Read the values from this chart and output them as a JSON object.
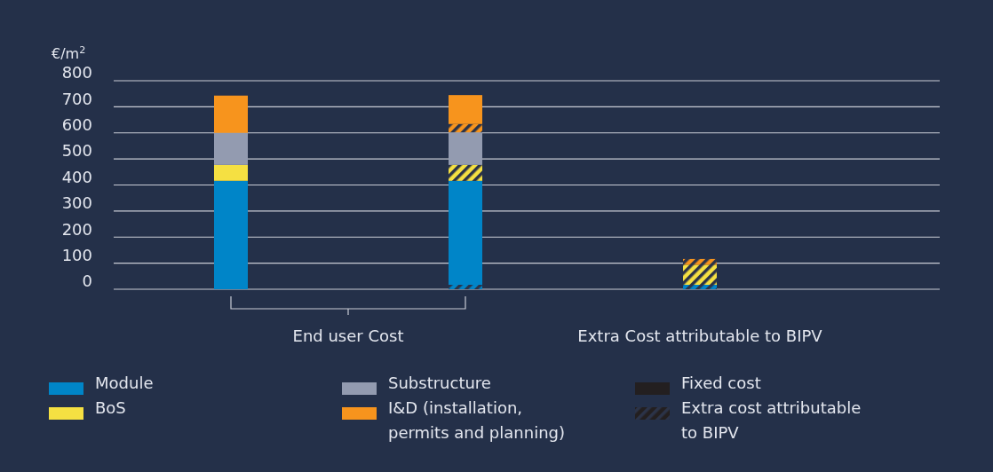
{
  "chart_data": {
    "type": "bar",
    "stacked": true,
    "ylabel": "€/m$^{2}$",
    "categories": [
      null,
      null,
      "Extra Cost attributable to BIPV"
    ],
    "annotations": [
      "End user Cost"
    ],
    "series": [
      {
        "color": "#0085c8",
        "line_style": "dashed",
        "values": [
          null,
          17,
          17
        ]
      },
      {
        "name": "Module",
        "color": "#0085c8",
        "values": [
          416,
          399,
          null
        ]
      },
      {
        "color": "#f5e042",
        "line_style": "dashed",
        "values": [
          null,
          61,
          77
        ]
      },
      {
        "name": "BoS",
        "color": "#f5e042",
        "values": [
          61,
          null,
          null
        ]
      },
      {
        "name": "Substructure",
        "color": "#939bb0",
        "values": [
          123,
          125,
          null
        ]
      },
      {
        "color": "#f7941d",
        "line_style": "dashed",
        "values": [
          null,
          32,
          22
        ]
      },
      {
        "name": "I&D (installation, permits and planning)",
        "color": "#f7941d",
        "values": [
          143,
          111,
          null
        ]
      },
      {
        "name": "Fixed cost",
        "color": "#231f20",
        "values": [
          null,
          null,
          null
        ]
      },
      {
        "name": "Extra cost attributable to BIPV",
        "color": "#231f20",
        "line_style": "dashed",
        "values": [
          null,
          null,
          null
        ]
      }
    ],
    "ylim": [
      0,
      800
    ],
    "yticks": [
      0,
      100,
      200,
      300,
      400,
      500,
      600,
      700,
      800
    ],
    "grid": "y",
    "legend": "bottom"
  }
}
